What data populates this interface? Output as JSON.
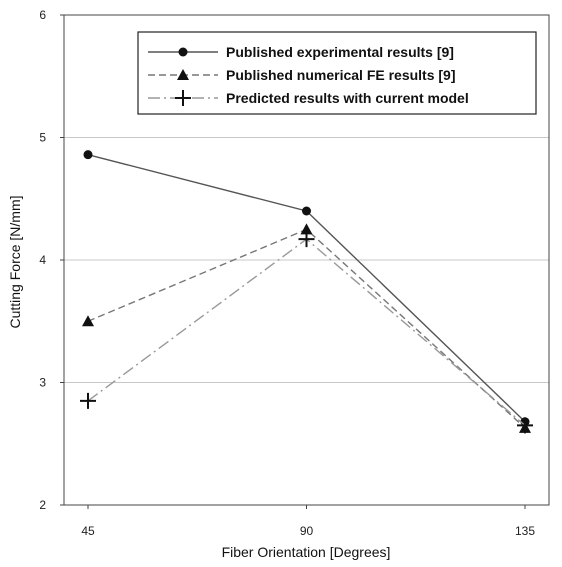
{
  "chart_data": {
    "type": "line",
    "xlabel": "Fiber Orientation [Degrees]",
    "ylabel": "Cutting Force [N/mm]",
    "x": [
      45,
      90,
      135
    ],
    "x_ticks": [
      "45",
      "90",
      "135"
    ],
    "y_ticks": [
      "2",
      "3",
      "4",
      "5",
      "6"
    ],
    "xlim": [
      45,
      135
    ],
    "ylim": [
      2,
      6
    ],
    "grid": "horizontal",
    "legend_position": "top-right",
    "series": [
      {
        "name": "Published experimental results [9]",
        "values": [
          4.86,
          4.4,
          2.68
        ],
        "marker": "circle",
        "line": "solid",
        "color": "#555555"
      },
      {
        "name": "Published numerical FE results [9]",
        "values": [
          3.5,
          4.25,
          2.63
        ],
        "marker": "triangle",
        "line": "dashed",
        "color": "#777777"
      },
      {
        "name": "Predicted results with current model",
        "values": [
          2.85,
          4.17,
          2.65
        ],
        "marker": "plus",
        "line": "dashdot",
        "color": "#999999"
      }
    ]
  }
}
